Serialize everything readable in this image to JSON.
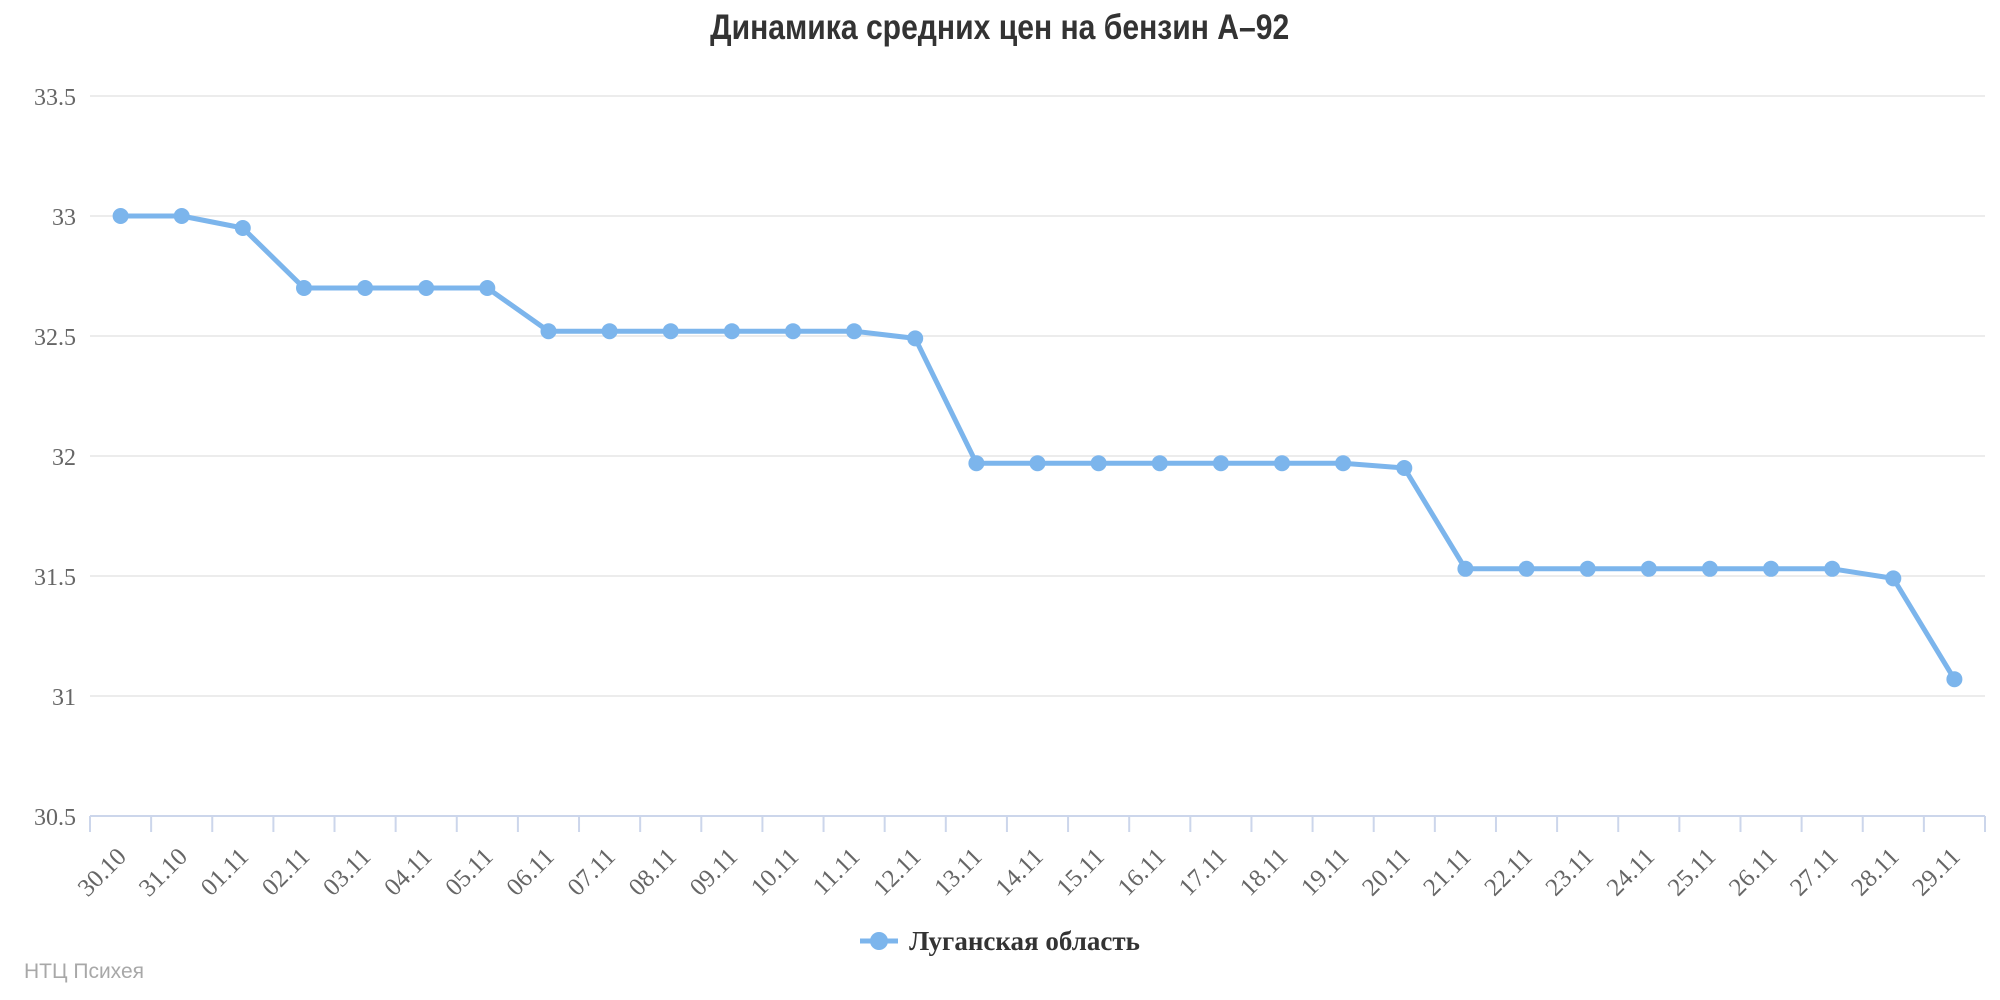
{
  "chart_data": {
    "type": "line",
    "title": "Динамика средних цен на бензин А–92",
    "categories": [
      "30.10",
      "31.10",
      "01.11",
      "02.11",
      "03.11",
      "04.11",
      "05.11",
      "06.11",
      "07.11",
      "08.11",
      "09.11",
      "10.11",
      "11.11",
      "12.11",
      "13.11",
      "14.11",
      "15.11",
      "16.11",
      "17.11",
      "18.11",
      "19.11",
      "20.11",
      "21.11",
      "22.11",
      "23.11",
      "24.11",
      "25.11",
      "26.11",
      "27.11",
      "28.11",
      "29.11"
    ],
    "series": [
      {
        "name": "Луганская область",
        "values": [
          33.0,
          33.0,
          32.95,
          32.7,
          32.7,
          32.7,
          32.7,
          32.52,
          32.52,
          32.52,
          32.52,
          32.52,
          32.52,
          32.49,
          31.97,
          31.97,
          31.97,
          31.97,
          31.97,
          31.97,
          31.97,
          31.95,
          31.53,
          31.53,
          31.53,
          31.53,
          31.53,
          31.53,
          31.53,
          31.49,
          31.07
        ]
      }
    ],
    "xlabel": "",
    "ylabel": "",
    "ylim": [
      30.5,
      33.5
    ],
    "y_ticks": [
      33.5,
      33,
      32.5,
      32,
      31.5,
      31,
      30.5
    ],
    "grid": true,
    "legend_position": "bottom",
    "colors": {
      "line": "#7cb5ec",
      "grid": "#e6e6e6",
      "axis": "#ccd6eb",
      "axis_text": "#666666",
      "title_text": "#333333",
      "legend_text": "#333333",
      "watermark_text": "#a8a8a8"
    }
  },
  "watermark": "НТЦ Психея"
}
